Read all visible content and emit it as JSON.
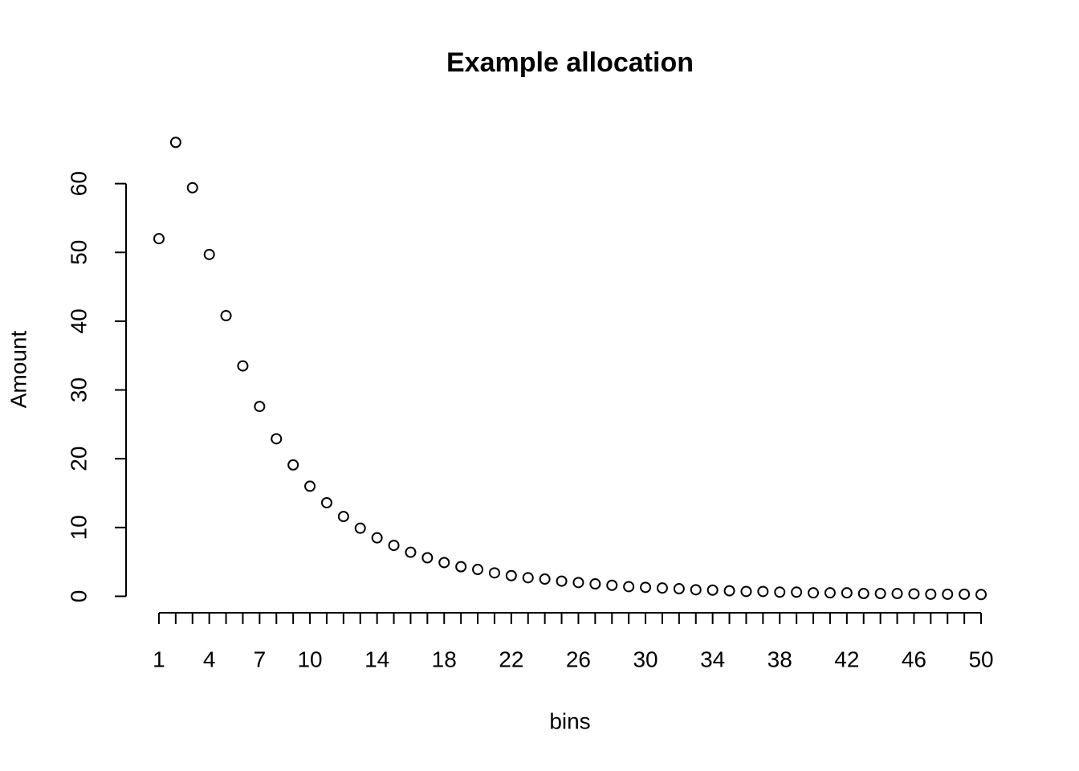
{
  "chart_data": {
    "type": "scatter",
    "title": "Example allocation",
    "x_label": "bins",
    "y_label": "Amount",
    "x": [
      1,
      2,
      3,
      4,
      5,
      6,
      7,
      8,
      9,
      10,
      11,
      12,
      13,
      14,
      15,
      16,
      17,
      18,
      19,
      20,
      21,
      22,
      23,
      24,
      25,
      26,
      27,
      28,
      29,
      30,
      31,
      32,
      33,
      34,
      35,
      36,
      37,
      38,
      39,
      40,
      41,
      42,
      43,
      44,
      45,
      46,
      47,
      48,
      49,
      50
    ],
    "values": [
      52.0,
      66.0,
      59.4,
      49.7,
      40.8,
      33.5,
      27.6,
      22.9,
      19.1,
      16.0,
      13.6,
      11.6,
      9.9,
      8.5,
      7.4,
      6.4,
      5.6,
      4.9,
      4.3,
      3.9,
      3.4,
      3.0,
      2.7,
      2.5,
      2.2,
      2.0,
      1.8,
      1.6,
      1.4,
      1.3,
      1.2,
      1.1,
      0.95,
      0.9,
      0.8,
      0.7,
      0.7,
      0.6,
      0.6,
      0.5,
      0.5,
      0.5,
      0.4,
      0.4,
      0.4,
      0.35,
      0.3,
      0.3,
      0.3,
      0.25
    ],
    "color": "#000000",
    "xlim": [
      -0.96,
      51.96
    ],
    "ylim": [
      -2.4,
      68.6
    ],
    "xticks": [
      1,
      4,
      7,
      10,
      14,
      18,
      22,
      26,
      30,
      34,
      38,
      42,
      46,
      50
    ],
    "yticks": [
      0,
      10,
      20,
      30,
      40,
      50,
      60
    ]
  }
}
